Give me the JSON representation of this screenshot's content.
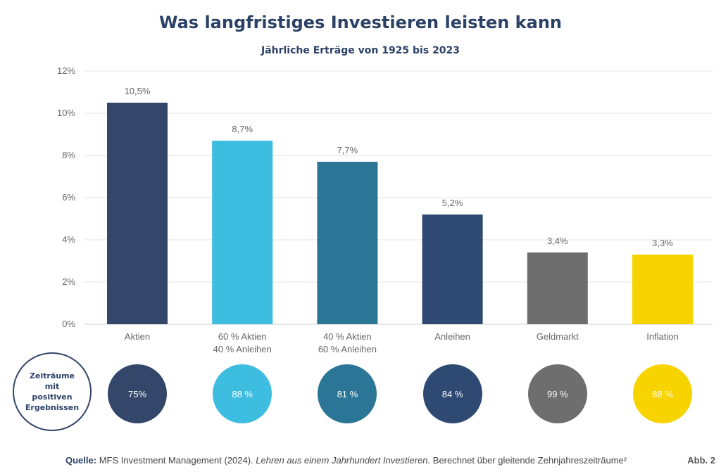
{
  "chart_data": {
    "type": "bar",
    "title": "Was langfristiges Investieren leisten kann",
    "subtitle": "Jährliche Erträge von 1925 bis 2023",
    "categories": [
      [
        "Aktien"
      ],
      [
        "60 % Aktien",
        "40 % Anleihen"
      ],
      [
        "40 % Aktien",
        "60 % Anleihen"
      ],
      [
        "Anleihen"
      ],
      [
        "Geldmarkt"
      ],
      [
        "Inflation"
      ]
    ],
    "values": [
      10.5,
      8.7,
      7.7,
      5.2,
      3.4,
      3.3
    ],
    "value_labels": [
      "10,5%",
      "8,7%",
      "7,7%",
      "5,2%",
      "3,4%",
      "3,3%"
    ],
    "colors": [
      "#34476a",
      "#3dbde0",
      "#2b7696",
      "#2e4a72",
      "#6e6e6e",
      "#f7d300"
    ],
    "yticks": [
      0,
      2,
      4,
      6,
      8,
      10,
      12
    ],
    "ytick_labels": [
      "0%",
      "2%",
      "4%",
      "6%",
      "8%",
      "10%",
      "12%"
    ],
    "ylim": [
      0,
      12
    ],
    "grid": true,
    "legend": "none"
  },
  "positive_periods": {
    "label": "Zeiträume\nmit\npositiven\nErgebnissen",
    "values": [
      "75%",
      "88 %",
      "81 %",
      "84 %",
      "99 %",
      "88 %"
    ]
  },
  "footer": {
    "source_label": "Quelle:",
    "source_text": "MFS Investment Management (2024).",
    "source_italic": "Lehren aus einem Jahrhundert Investieren.",
    "source_rest": "Berechnet über gleitende Zehnjahreszeiträume²",
    "figure_number": "Abb. 2"
  }
}
